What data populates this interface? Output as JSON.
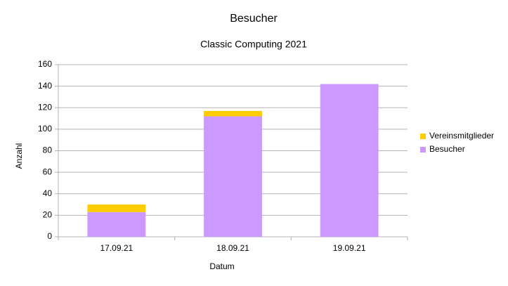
{
  "chart_data": {
    "type": "stacked_bar",
    "title": "Besucher",
    "subtitle": "Classic Computing 2021",
    "x_label": "Datum",
    "y_label": "Anzahl",
    "categories": [
      "17.09.21",
      "18.09.21",
      "19.09.21"
    ],
    "series": [
      {
        "name": "Besucher",
        "color": "#cc99ff",
        "values": [
          23,
          112,
          142
        ]
      },
      {
        "name": "Vereinsmitglieder",
        "color": "#ffcc00",
        "values": [
          7,
          5,
          0
        ]
      }
    ],
    "ylim": [
      0,
      160
    ],
    "yticks": [
      0,
      20,
      40,
      60,
      80,
      100,
      120,
      140,
      160
    ],
    "grid": true,
    "legend": "right"
  }
}
